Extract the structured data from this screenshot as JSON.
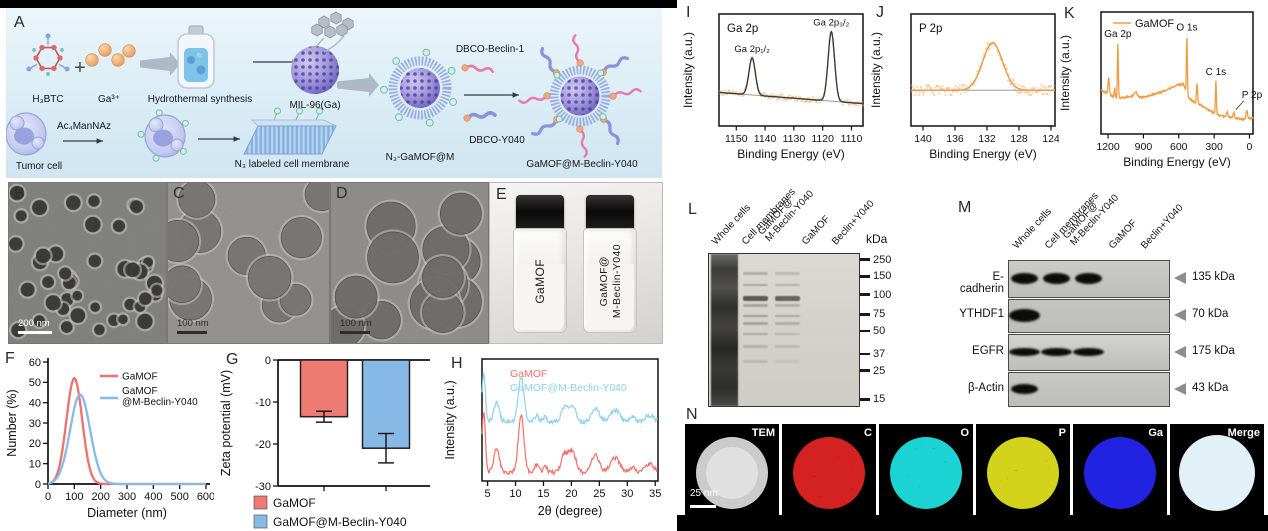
{
  "panels": {
    "A": {
      "label": "A",
      "reagent1": "H₃BTC",
      "plus": "+",
      "reagent2": "Ga³⁺",
      "step1": "Hydrothermal synthesis",
      "product1": "MIL-96(Ga)",
      "cell": "Tumor cell",
      "cell_reagent": "Ac₄ManNAz",
      "membrane": "N₃ labeled cell membrane",
      "intermediate": "N₃-GaMOF@M",
      "linker1": "DBCO-Beclin-1",
      "linker2": "DBCO-Y040",
      "final": "GaMOF@M-Beclin-Y040"
    },
    "B": {
      "label": "B",
      "scale_bar": "200 nm"
    },
    "C": {
      "label": "C",
      "scale_bar": "100 nm"
    },
    "D": {
      "label": "D",
      "scale_bar": "100 nm"
    },
    "E": {
      "label": "E",
      "vial1": "GaMOF",
      "vial2_line1": "GaMOF@",
      "vial2_line2": "M-Beclin-Y040"
    },
    "F": {
      "label": "F"
    },
    "G": {
      "label": "G"
    },
    "H": {
      "label": "H"
    },
    "I": {
      "label": "I"
    },
    "J": {
      "label": "J"
    },
    "K": {
      "label": "K"
    },
    "L": {
      "label": "L",
      "unit": "kDa",
      "lanes": [
        "Whole cells",
        "Cell membranes",
        "GaMOF@\nM-Beclin-Y040",
        "GaMOF",
        "Beclin+Y040"
      ],
      "markers": [
        250,
        150,
        100,
        75,
        50,
        37,
        25,
        15
      ]
    },
    "M": {
      "label": "M",
      "lanes": [
        "Whole cells",
        "Cell membranes",
        "GaMOF@\nM-Beclin-Y040",
        "GaMOF",
        "Beclin+Y040"
      ],
      "rows": [
        {
          "protein": "E-cadherin",
          "kda": "135 kDa",
          "bands": [
            1,
            1,
            1,
            0,
            0
          ]
        },
        {
          "protein": "YTHDF1",
          "kda": "70 kDa",
          "bands": [
            1,
            0,
            0,
            0,
            0
          ]
        },
        {
          "protein": "EGFR",
          "kda": "175 kDa",
          "bands": [
            1,
            1,
            1,
            0,
            0
          ]
        },
        {
          "protein": "β-Actin",
          "kda": "43 kDa",
          "bands": [
            1,
            0,
            0,
            0,
            0
          ]
        }
      ]
    },
    "N": {
      "label": "N",
      "scale_bar": "25 nm",
      "maps": [
        {
          "label": "TEM",
          "color": "#cbcbcb"
        },
        {
          "label": "C",
          "color": "#d42222"
        },
        {
          "label": "O",
          "color": "#1ed3d3"
        },
        {
          "label": "P",
          "color": "#d3d31e"
        },
        {
          "label": "Ga",
          "color": "#2424e2"
        },
        {
          "label": "Merge",
          "color": "#e2f0f7"
        }
      ]
    }
  },
  "chart_data": [
    {
      "id": "F",
      "type": "line",
      "xlabel": "Diameter (nm)",
      "ylabel": "Number (%)",
      "xlim": [
        0,
        600
      ],
      "ylim": [
        0,
        60
      ],
      "xticks": [
        0,
        100,
        200,
        300,
        400,
        500,
        600
      ],
      "yticks": [
        0,
        10,
        20,
        30,
        40,
        50,
        60
      ],
      "series": [
        {
          "name": "GaMOF",
          "color": "#f0706a",
          "peak_diameter_nm": 100,
          "peak_number_pct": 52,
          "sigma_nm": 30
        },
        {
          "name": "GaMOF @M-Beclin-Y040",
          "color": "#86bbe8",
          "peak_diameter_nm": 122,
          "peak_number_pct": 44,
          "sigma_nm": 38
        }
      ],
      "legend": [
        "GaMOF",
        "GaMOF\n@M-Beclin-Y040"
      ]
    },
    {
      "id": "G",
      "type": "bar",
      "ylabel": "Zeta potential (mV)",
      "ylim": [
        -30,
        0
      ],
      "yticks": [
        0,
        -10,
        -20,
        -30
      ],
      "categories": [
        "GaMOF",
        "GaMOF@M-Beclin-Y040"
      ],
      "values": [
        -13.5,
        -21
      ],
      "errors": [
        1.3,
        3.5
      ],
      "colors": [
        "#ee7b72",
        "#86b9e6"
      ]
    },
    {
      "id": "H",
      "type": "line",
      "xlabel": "2θ (degree)",
      "ylabel": "Intensity (a.u.)",
      "xlim": [
        4,
        35.5
      ],
      "xticks": [
        5,
        10,
        15,
        20,
        25,
        30,
        35
      ],
      "series": [
        {
          "name": "GaMOF",
          "color": "#f0706a"
        },
        {
          "name": "GaMOF@M-Beclin-Y040",
          "color": "#8fd0f0"
        }
      ],
      "peak_positions_2theta": [
        4.3,
        6.6,
        11,
        13.8,
        15.3,
        18.8,
        20.2,
        24.3,
        27.8,
        31,
        34
      ],
      "peak_rel_heights": [
        0.9,
        0.35,
        0.85,
        0.12,
        0.1,
        0.28,
        0.3,
        0.25,
        0.22,
        0.08,
        0.12
      ]
    },
    {
      "id": "I",
      "type": "line",
      "title": "Ga 2p",
      "xlabel": "Binding Energy (eV)",
      "ylabel": "Intensity (a.u.)",
      "xlim": [
        1156,
        1106
      ],
      "xticks": [
        1150,
        1140,
        1130,
        1120,
        1110
      ],
      "x_reversed": true,
      "color": "#f0a04a",
      "peaks": [
        {
          "label": "Ga 2p₁/₂",
          "binding_energy_ev": 1144.5,
          "rel_height": 0.33
        },
        {
          "label": "Ga 2p₃/₂",
          "binding_energy_ev": 1117,
          "rel_height": 0.62
        }
      ]
    },
    {
      "id": "J",
      "type": "line",
      "title": "P 2p",
      "xlabel": "Binding Energy (eV)",
      "ylabel": "Intensity (a.u.)",
      "xlim": [
        141.5,
        123.5
      ],
      "xticks": [
        140,
        136,
        132,
        128,
        124
      ],
      "x_reversed": true,
      "color": "#f0a04a",
      "peaks": [
        {
          "label": "P 2p",
          "binding_energy_ev": 131.3,
          "rel_height": 0.42
        }
      ]
    },
    {
      "id": "K",
      "type": "line",
      "legend": [
        "GaMOF"
      ],
      "xlabel": "Binding Energy (eV)",
      "ylabel": "Intensity (a.u.)",
      "xlim": [
        1260,
        -30
      ],
      "xticks": [
        1200,
        900,
        600,
        300,
        0
      ],
      "x_reversed": true,
      "color": "#f09d43",
      "peaks": [
        {
          "label": "Ga 2p",
          "binding_energy_ev": 1117,
          "rel_height": 0.45
        },
        {
          "label": "O 1s",
          "binding_energy_ev": 531,
          "rel_height": 0.47
        },
        {
          "label": "C 1s",
          "binding_energy_ev": 285,
          "rel_height": 0.27
        },
        {
          "label": "P 2p",
          "binding_energy_ev": 133,
          "rel_height": 0.05
        }
      ]
    }
  ]
}
